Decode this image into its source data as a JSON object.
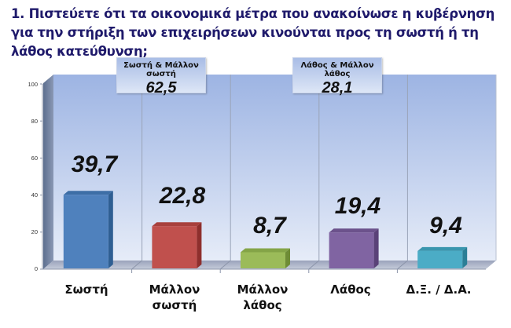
{
  "title": "1. Πιστεύετε ότι τα οικονομικά μέτρα που ανακοίνωσε η κυβέρνηση για την στήριξη των επιχειρήσεων κινούνται προς τη σωστή ή τη λάθος κατεύθυνση;",
  "summary": [
    {
      "label": "Σωστή & Μάλλον σωστή",
      "value": "62,5"
    },
    {
      "label": "Λάθος & Μάλλον λάθος",
      "value": "28,1"
    }
  ],
  "yticks": [
    "0",
    "20",
    "40",
    "60",
    "80",
    "100"
  ],
  "bars": [
    {
      "label_line1": "Σωστή",
      "label_line2": "",
      "value_label": "39,7",
      "value": 39.7,
      "color": "#4f81bd",
      "side": "#2f5f93",
      "top": "#3d6ea6"
    },
    {
      "label_line1": "Μάλλον",
      "label_line2": "σωστή",
      "value_label": "22,8",
      "value": 22.8,
      "color": "#c0504d",
      "side": "#8e2f2d",
      "top": "#a8403d"
    },
    {
      "label_line1": "Μάλλον",
      "label_line2": "λάθος",
      "value_label": "8,7",
      "value": 8.7,
      "color": "#9bbb59",
      "side": "#6e8c36",
      "top": "#84a447"
    },
    {
      "label_line1": "Λάθος",
      "label_line2": "",
      "value_label": "19,4",
      "value": 19.4,
      "color": "#8064a2",
      "side": "#5a4278",
      "top": "#6c528c"
    },
    {
      "label_line1": "Δ.Ξ. / Δ.Α.",
      "label_line2": "",
      "value_label": "9,4",
      "value": 9.4,
      "color": "#4bacc6",
      "side": "#2b7f96",
      "top": "#3a96ae"
    }
  ],
  "colors": {
    "title": "#1f1a6b",
    "wall_top": "#9fb6e4",
    "wall_bottom": "#e4ebf8",
    "floor": "#a6aec4",
    "side_wall": "#6f7f9c"
  },
  "chart_data": {
    "type": "bar",
    "title": "1. Πιστεύετε ότι τα οικονομικά μέτρα που ανακοίνωσε η κυβέρνηση για την στήριξη των επιχειρήσεων κινούνται προς τη σωστή ή τη λάθος κατεύθυνση;",
    "categories": [
      "Σωστή",
      "Μάλλον σωστή",
      "Μάλλον λάθος",
      "Λάθος",
      "Δ.Ξ. / Δ.Α."
    ],
    "values": [
      39.7,
      22.8,
      8.7,
      19.4,
      9.4
    ],
    "xlabel": "",
    "ylabel": "",
    "ylim": [
      0,
      100
    ],
    "yticks": [
      0,
      20,
      40,
      60,
      80,
      100
    ],
    "grid": "vertical category separators",
    "style": "3D clustered column, per-bar colors",
    "annotations": [
      {
        "text": "Σωστή & Μάλλον σωστή",
        "value": 62.5
      },
      {
        "text": "Λάθος & Μάλλον λάθος",
        "value": 28.1
      }
    ],
    "legend": "none"
  }
}
